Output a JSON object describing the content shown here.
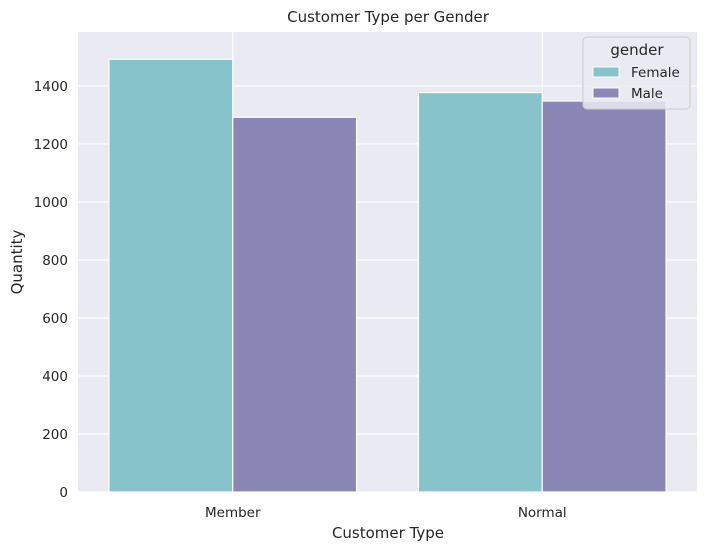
{
  "chart_data": {
    "type": "bar",
    "title": "Customer Type per Gender",
    "xlabel": "Customer Type",
    "ylabel": "Quantity",
    "categories": [
      "Member",
      "Normal"
    ],
    "series": [
      {
        "name": "Female",
        "values": [
          1492,
          1377
        ],
        "color": "#86c3cb"
      },
      {
        "name": "Male",
        "values": [
          1292,
          1348
        ],
        "color": "#8a86b6"
      }
    ],
    "ylim": [
      0,
      1586
    ],
    "yticks": [
      0,
      200,
      400,
      600,
      800,
      1000,
      1200,
      1400
    ],
    "legend": {
      "title": "gender",
      "position": "top-right"
    },
    "grid": true,
    "background_color": "#eaeaf2",
    "grid_color": "#ffffff"
  }
}
